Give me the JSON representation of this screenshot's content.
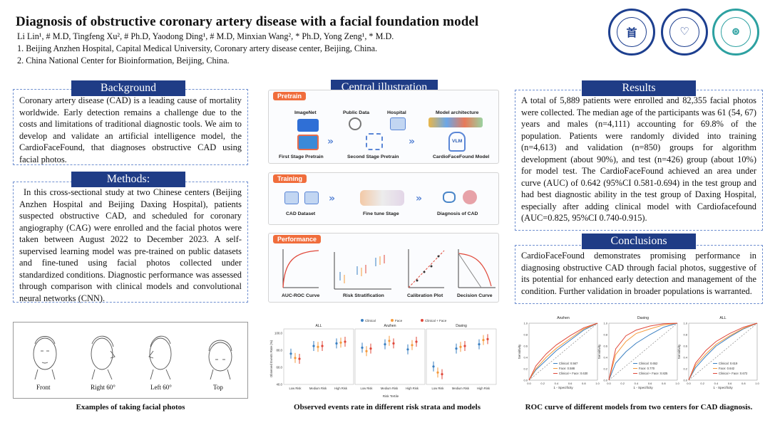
{
  "header": {
    "title": "Diagnosis of obstructive coronary artery disease with a facial foundation model",
    "authors": "Li Lin¹, # M.D, Tingfeng Xu², # Ph.D, Yaodong Ding¹, # M.D,  Minxian Wang², * Ph.D, Yong Zeng¹, * M.D.",
    "affiliation_1": "1. Beijing Anzhen Hospital, Capital Medical University, Coronary artery disease center, Beijing,  China.",
    "affiliation_2": "2. China National Center for Bioinformation, Beijing, China.",
    "logos": [
      {
        "name": "capital-medical-university-logo",
        "text": "CAPITAL MEDICAL UNIVERSITY"
      },
      {
        "name": "beijing-anzhen-hospital-logo",
        "text": "BEIJING ANZHEN HOSPITAL"
      },
      {
        "name": "china-national-center-bioinformation-logo",
        "text": ""
      }
    ]
  },
  "background": {
    "title": "Background",
    "text": "Coronary artery disease (CAD) is a leading cause of mortality worldwide. Early detection remains a challenge due to the costs and limitations of traditional diagnostic tools. We aim to develop and validate an artificial intelligence model, the CardioFaceFound, that diagnoses obstructive CAD using facial photos."
  },
  "methods": {
    "title": "Methods:",
    "text": "In this cross-sectional study at two Chinese centers (Beijing Anzhen Hospital and Beijing Daxing Hospital), patients suspected obstructive CAD, and scheduled for coronary angiography (CAG) were enrolled and the facial photos were taken between August 2022 to December 2023. A self-supervised learning model was pre-trained on public datasets and fine-tuned using facial photos collected under standardized conditions. Diagnostic performance was assessed through comparison with clinical models and convolutional neural networks (CNN)."
  },
  "central": {
    "title": "Central illustration",
    "pretrain": {
      "tag": "Pretrain",
      "imagenet": "ImageNet",
      "public_data": "Public Data",
      "hospital": "Hospital",
      "model_arch": "Model architecture",
      "vlm": "VLM",
      "first_stage": "First Stage Pretrain",
      "second_stage": "Second Stage Pretrain",
      "model_name": "CardioFaceFound Model"
    },
    "training": {
      "tag": "Training",
      "dataset": "CAD Dataset",
      "fine_tune": "Fine tune Stage",
      "diagnosis": "Diagnosis of CAD"
    },
    "performance": {
      "tag": "Performance",
      "roc": "AUC-ROC Curve",
      "risk": "Risk Stratification",
      "calib": "Calibration Plot",
      "decision": "Decision Curve"
    }
  },
  "results": {
    "title": "Results",
    "text": "A total of 5,889 patients were enrolled and 82,355 facial photos were collected. The median age of the participants was 61 (54, 67) years and males (n=4,111) accounting for 69.8% of the population. Patients were randomly divided into training (n=4,613) and validation (n=850) groups for algorithm development (about 90%), and test (n=426) group (about 10%) for model test. The CardioFaceFound achieved an area under curve (AUC) of 0.642 (95%CI 0.581-0.694) in the test group and had best diagnostic ability in the test group of Daxing Hospital, especially after adding clinical model with Cardiofacefound (AUC=0.825, 95%CI 0.740-0.915)."
  },
  "conclusions": {
    "title": "Conclusions",
    "text": "CardioFaceFound demonstrates promising performance in diagnosing obstructive CAD through facial photos, suggestive of its potential for enhanced early detection and management of the condition. Further validation in broader populations is warranted."
  },
  "faces": {
    "labels": [
      "Front",
      "Right 60°",
      "Left 60°",
      "Top"
    ],
    "caption": "Examples of taking facial photos"
  },
  "risk_figure": {
    "caption": "Observed events rate in different risk strata and models"
  },
  "roc_figure": {
    "caption": "ROC curve of different models from two centers for CAD diagnosis."
  },
  "chart_data": [
    {
      "type": "scatter",
      "title": "Observed events rate in different risk strata and models",
      "xlabel": "Risk Tertile",
      "ylabel": "Observed Events Rate (%)",
      "ylim": [
        40,
        100
      ],
      "yticks": [
        40.0,
        60.0,
        80.0,
        100.0
      ],
      "legend": [
        "Clinical",
        "Face",
        "Clinical + Face"
      ],
      "colors": [
        "#3a7fc1",
        "#f59a3c",
        "#e0483a"
      ],
      "categories": [
        "Low Risk",
        "Medium Risk",
        "High Risk"
      ],
      "panels": [
        {
          "name": "ALL",
          "series": [
            {
              "name": "Clinical",
              "values": [
                76,
                85,
                88
              ]
            },
            {
              "name": "Face",
              "values": [
                71,
                84,
                89
              ]
            },
            {
              "name": "Clinical + Face",
              "values": [
                70,
                85,
                90
              ]
            }
          ]
        },
        {
          "name": "Anzhen",
          "series": [
            {
              "name": "Clinical",
              "values": [
                83,
                87,
                81
              ]
            },
            {
              "name": "Face",
              "values": [
                79,
                91,
                86
              ]
            },
            {
              "name": "Clinical + Face",
              "values": [
                82,
                88,
                90
              ]
            }
          ]
        },
        {
          "name": "Daxing",
          "series": [
            {
              "name": "Clinical",
              "values": [
                61,
                82,
                87
              ]
            },
            {
              "name": "Face",
              "values": [
                54,
                84,
                92
              ]
            },
            {
              "name": "Clinical + Face",
              "values": [
                52,
                85,
                93
              ]
            }
          ]
        }
      ]
    },
    {
      "type": "line",
      "title": "ROC curve of different models from two centers for CAD diagnosis.",
      "xlabel": "1 - Specificity",
      "ylabel": "Sensitivity",
      "xlim": [
        0,
        1
      ],
      "ylim": [
        0,
        1
      ],
      "ticks": [
        0.0,
        0.2,
        0.4,
        0.6,
        0.8,
        1.0
      ],
      "panels": [
        {
          "name": "Anzhen",
          "series": [
            {
              "name": "Clinical: 0.567",
              "color": "#3a7fc1",
              "x": [
                0,
                0.1,
                0.25,
                0.4,
                0.6,
                0.8,
                1
              ],
              "y": [
                0,
                0.18,
                0.35,
                0.52,
                0.7,
                0.88,
                1
              ]
            },
            {
              "name": "Face: 0.588",
              "color": "#f59a3c",
              "x": [
                0,
                0.1,
                0.25,
                0.4,
                0.6,
                0.8,
                1
              ],
              "y": [
                0,
                0.2,
                0.4,
                0.56,
                0.73,
                0.9,
                1
              ]
            },
            {
              "name": "Clinical + Face: 0.630",
              "color": "#e0483a",
              "x": [
                0,
                0.1,
                0.25,
                0.4,
                0.6,
                0.8,
                1
              ],
              "y": [
                0,
                0.25,
                0.46,
                0.62,
                0.78,
                0.92,
                1
              ]
            }
          ]
        },
        {
          "name": "Daxing",
          "series": [
            {
              "name": "Clinical: 0.652",
              "color": "#3a7fc1",
              "x": [
                0,
                0.1,
                0.25,
                0.4,
                0.6,
                0.8,
                1
              ],
              "y": [
                0,
                0.3,
                0.5,
                0.65,
                0.8,
                0.93,
                1
              ]
            },
            {
              "name": "Face: 0.770",
              "color": "#f59a3c",
              "x": [
                0,
                0.1,
                0.25,
                0.4,
                0.6,
                0.8,
                1
              ],
              "y": [
                0,
                0.45,
                0.68,
                0.82,
                0.9,
                0.97,
                1
              ]
            },
            {
              "name": "Clinical + Face: 0.825",
              "color": "#e0483a",
              "x": [
                0,
                0.1,
                0.25,
                0.4,
                0.6,
                0.8,
                1
              ],
              "y": [
                0,
                0.55,
                0.78,
                0.88,
                0.95,
                0.99,
                1
              ]
            }
          ]
        },
        {
          "name": "ALL",
          "series": [
            {
              "name": "Clinical: 0.619",
              "color": "#3a7fc1",
              "x": [
                0,
                0.1,
                0.25,
                0.4,
                0.6,
                0.8,
                1
              ],
              "y": [
                0,
                0.22,
                0.42,
                0.6,
                0.76,
                0.9,
                1
              ]
            },
            {
              "name": "Face: 0.642",
              "color": "#f59a3c",
              "x": [
                0,
                0.1,
                0.25,
                0.4,
                0.6,
                0.8,
                1
              ],
              "y": [
                0,
                0.26,
                0.46,
                0.63,
                0.78,
                0.91,
                1
              ]
            },
            {
              "name": "Clinical + Face: 0.672",
              "color": "#e0483a",
              "x": [
                0,
                0.1,
                0.25,
                0.4,
                0.6,
                0.8,
                1
              ],
              "y": [
                0,
                0.3,
                0.52,
                0.68,
                0.82,
                0.93,
                1
              ]
            }
          ]
        }
      ]
    }
  ]
}
